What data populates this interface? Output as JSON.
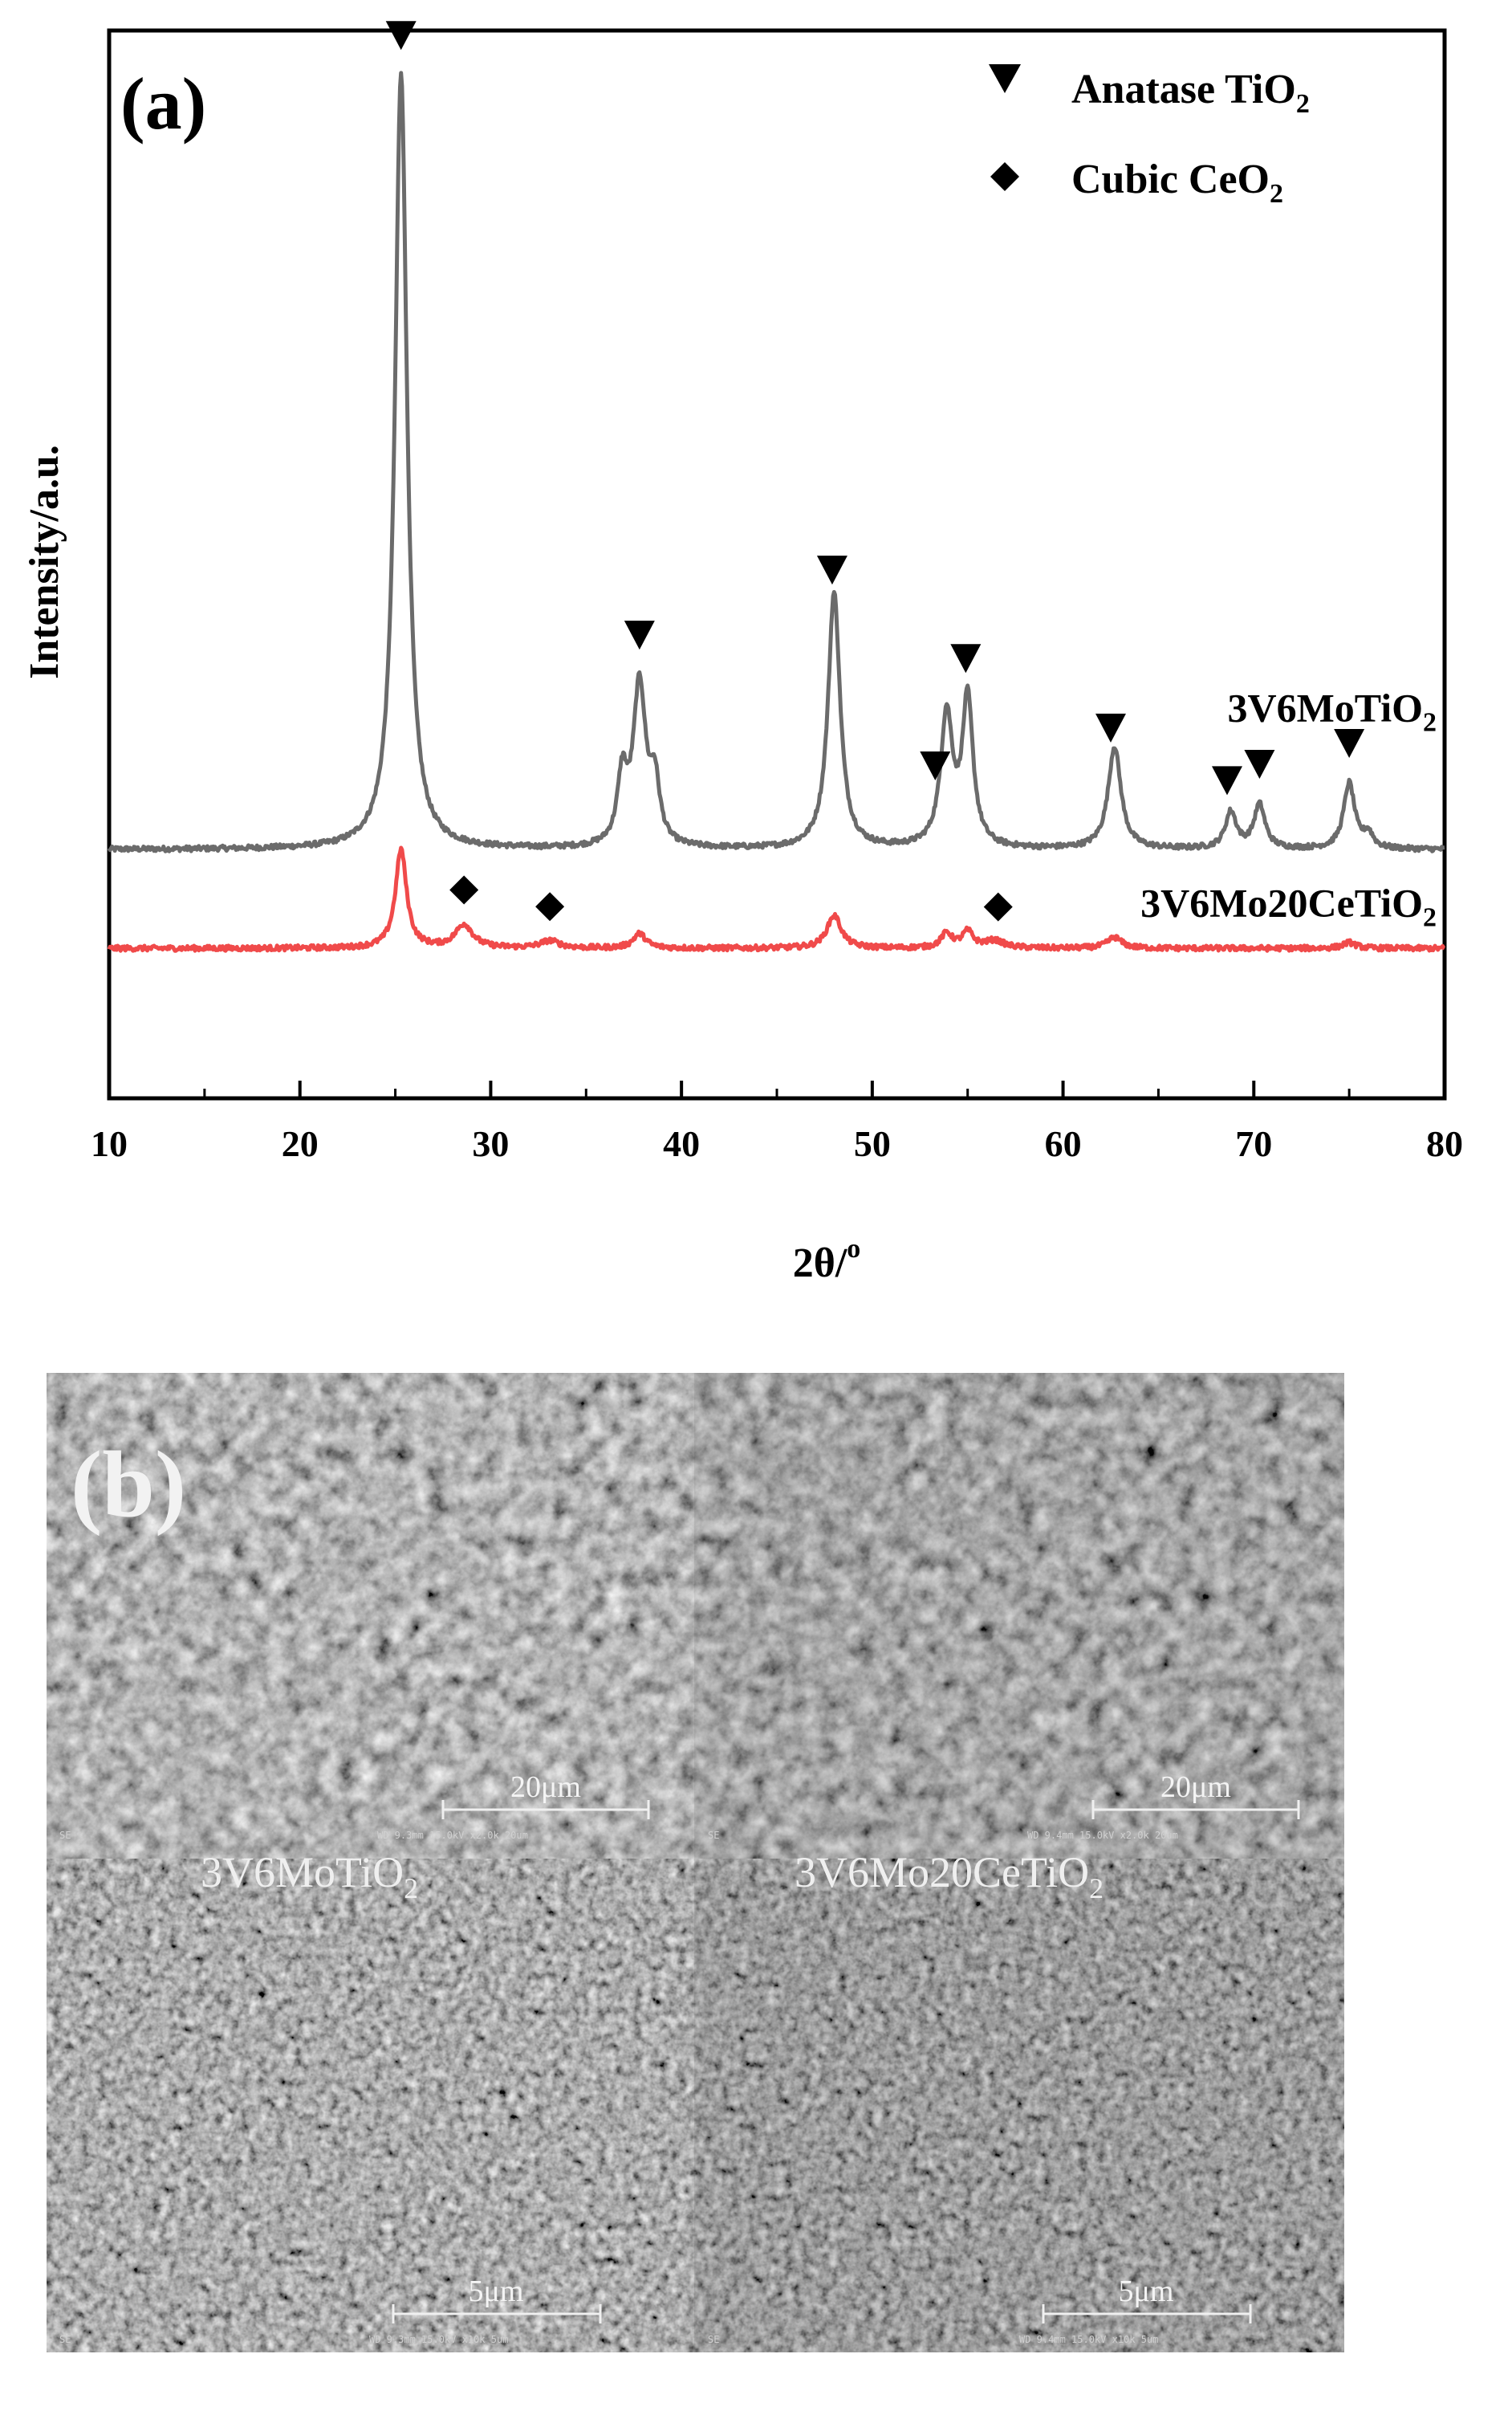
{
  "figure": {
    "panel_a_label": "(a)",
    "panel_b_label": "(b)"
  },
  "chart_data": {
    "type": "line",
    "title": "",
    "xlabel": "2θ/",
    "xlabel_superscript": "o",
    "ylabel": "Intensity/a.u.",
    "xlim": [
      10,
      80
    ],
    "xticks": [
      10,
      20,
      30,
      40,
      50,
      60,
      70,
      80
    ],
    "y_ticks_shown": false,
    "grid": false,
    "legend_position": "top-right",
    "legend": [
      {
        "symbol": "inverted-triangle",
        "label": "Anatase TiO",
        "subscript": "2"
      },
      {
        "symbol": "diamond",
        "label": "Cubic CeO",
        "subscript": "2"
      }
    ],
    "series": [
      {
        "name": "3V6MoTiO",
        "name_subscript": "2",
        "color": "#6b6b6b",
        "baseline": 1.0,
        "peaks": [
          {
            "x": 25.3,
            "height": 10.6,
            "width": 0.38
          },
          {
            "x": 36.9,
            "height": 0.9,
            "width": 0.3
          },
          {
            "x": 37.8,
            "height": 2.2,
            "width": 0.4
          },
          {
            "x": 38.6,
            "height": 0.8,
            "width": 0.3
          },
          {
            "x": 48.0,
            "height": 3.5,
            "width": 0.38
          },
          {
            "x": 53.9,
            "height": 1.8,
            "width": 0.38
          },
          {
            "x": 55.0,
            "height": 2.0,
            "width": 0.34
          },
          {
            "x": 62.7,
            "height": 1.4,
            "width": 0.4
          },
          {
            "x": 68.8,
            "height": 0.5,
            "width": 0.35
          },
          {
            "x": 70.3,
            "height": 0.6,
            "width": 0.35
          },
          {
            "x": 75.0,
            "height": 0.9,
            "width": 0.35
          },
          {
            "x": 76.0,
            "height": 0.2,
            "width": 0.3
          }
        ],
        "markers": [
          {
            "x": 25.3,
            "symbol": "inverted-triangle"
          },
          {
            "x": 37.8,
            "symbol": "inverted-triangle"
          },
          {
            "x": 47.9,
            "symbol": "inverted-triangle"
          },
          {
            "x": 53.3,
            "symbol": "inverted-triangle"
          },
          {
            "x": 54.9,
            "symbol": "inverted-triangle"
          },
          {
            "x": 62.5,
            "symbol": "inverted-triangle"
          },
          {
            "x": 68.6,
            "symbol": "inverted-triangle"
          },
          {
            "x": 70.3,
            "symbol": "inverted-triangle"
          },
          {
            "x": 75.0,
            "symbol": "inverted-triangle"
          }
        ]
      },
      {
        "name": "3V6Mo20CeTiO",
        "name_subscript": "2",
        "color": "#f04a4a",
        "baseline": -0.35,
        "peaks": [
          {
            "x": 25.3,
            "height": 1.35,
            "width": 0.35
          },
          {
            "x": 28.6,
            "height": 0.32,
            "width": 0.55
          },
          {
            "x": 33.1,
            "height": 0.1,
            "width": 0.6
          },
          {
            "x": 37.8,
            "height": 0.2,
            "width": 0.4
          },
          {
            "x": 48.0,
            "height": 0.45,
            "width": 0.45
          },
          {
            "x": 53.9,
            "height": 0.2,
            "width": 0.35
          },
          {
            "x": 55.0,
            "height": 0.22,
            "width": 0.35
          },
          {
            "x": 56.4,
            "height": 0.1,
            "width": 0.6
          },
          {
            "x": 62.7,
            "height": 0.15,
            "width": 0.45
          },
          {
            "x": 75.0,
            "height": 0.08,
            "width": 0.4
          }
        ],
        "markers": [
          {
            "x": 28.6,
            "symbol": "diamond"
          },
          {
            "x": 33.1,
            "symbol": "diamond"
          },
          {
            "x": 56.6,
            "symbol": "diamond"
          }
        ]
      }
    ]
  },
  "sem": {
    "images": [
      {
        "sample": "3V6MoTiO",
        "sample_subscript": "2",
        "scale_label": "20μm",
        "meta": "WD 9.3mm 15.0kV x2.0k   20um",
        "mode": "SE",
        "brightness": 1.05
      },
      {
        "sample": "3V6Mo20CeTiO",
        "sample_subscript": "2",
        "scale_label": "20μm",
        "meta": "WD 9.4mm 15.0kV x2.0k   20um",
        "mode": "SE",
        "brightness": 0.95
      },
      {
        "sample": "",
        "sample_subscript": "",
        "scale_label": "5μm",
        "meta": "WD 9.3mm 15.0kV x10k    5um",
        "mode": "SE",
        "brightness": 1.0
      },
      {
        "sample": "",
        "sample_subscript": "",
        "scale_label": "5μm",
        "meta": "WD 9.4mm 15.0kV x10k    5um",
        "mode": "SE",
        "brightness": 0.9
      }
    ]
  }
}
